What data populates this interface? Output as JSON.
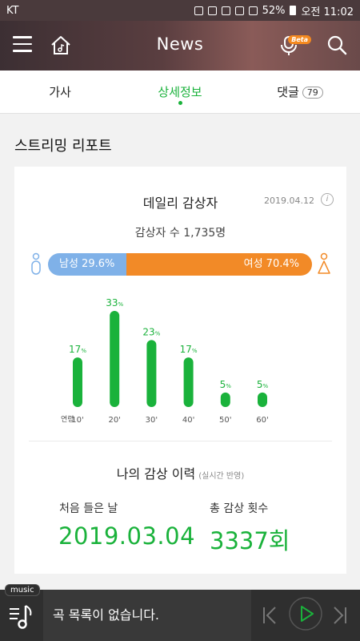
{
  "status_bar": {
    "carrier": "KT",
    "battery": "52%",
    "time": "오전 11:02"
  },
  "header": {
    "title": "News",
    "beta_label": "Beta"
  },
  "tabs": [
    {
      "label": "가사"
    },
    {
      "label": "상세정보",
      "active": true
    },
    {
      "label": "댓글",
      "count": "79"
    }
  ],
  "section": {
    "title": "스트리밍 리포트"
  },
  "daily": {
    "title": "데일리 감상자",
    "date": "2019.04.12",
    "listeners": "감상자 수 1,735명",
    "male_label": "남성 29.6%",
    "female_label": "여성 70.4%",
    "male_pct": 29.6,
    "female_pct": 70.4
  },
  "chart_data": {
    "type": "bar",
    "categories": [
      "10'",
      "20'",
      "30'",
      "40'",
      "50'",
      "60'"
    ],
    "values": [
      17,
      33,
      23,
      17,
      5,
      5
    ],
    "unit": "%",
    "xlabel": "연령",
    "ylim": [
      0,
      33
    ]
  },
  "history": {
    "title": "나의 감상 이력",
    "subtitle": "(실시간 반영)",
    "first_label": "처음 들은 날",
    "first_value": "2019.03.04",
    "total_label": "총 감상 횟수",
    "total_value": "3337회"
  },
  "player": {
    "tag": "music",
    "now_playing": "곡 목록이 없습니다."
  },
  "colors": {
    "accent": "#1ab23b",
    "male": "#7fb1e8",
    "female": "#f28a27"
  }
}
